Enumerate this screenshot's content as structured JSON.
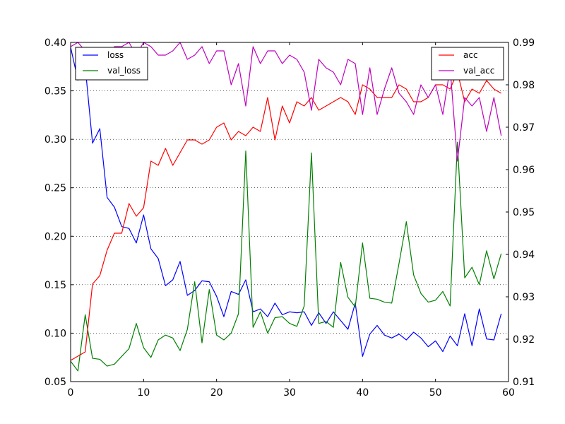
{
  "chart_data": {
    "type": "line",
    "title": "",
    "xlabel": "",
    "ylabel_left": "",
    "ylabel_right": "",
    "xlim": [
      0,
      60
    ],
    "ylim_left": [
      0.05,
      0.4
    ],
    "ylim_right": [
      0.91,
      0.99
    ],
    "x_ticks": [
      "0",
      "10",
      "20",
      "30",
      "40",
      "50",
      "60"
    ],
    "y_left_ticks": [
      "0.05",
      "0.10",
      "0.15",
      "0.20",
      "0.25",
      "0.30",
      "0.35",
      "0.40"
    ],
    "y_right_ticks": [
      "0.91",
      "0.92",
      "0.93",
      "0.94",
      "0.95",
      "0.96",
      "0.97",
      "0.98",
      "0.99"
    ],
    "grid": "dotted horizontal lines at left-axis ticks",
    "legend_left": {
      "placement": "top-left",
      "entries": [
        "loss",
        "val_loss"
      ]
    },
    "legend_right": {
      "placement": "top-right",
      "entries": [
        "acc",
        "val_acc"
      ]
    },
    "colors": {
      "loss": "#0000ff",
      "val_loss": "#008000",
      "acc": "#ff0000",
      "val_acc": "#bf00bf"
    },
    "x": [
      0,
      1,
      2,
      3,
      4,
      5,
      6,
      7,
      8,
      9,
      10,
      11,
      12,
      13,
      14,
      15,
      16,
      17,
      18,
      19,
      20,
      21,
      22,
      23,
      24,
      25,
      26,
      27,
      28,
      29,
      30,
      31,
      32,
      33,
      34,
      35,
      36,
      37,
      38,
      39,
      40,
      41,
      42,
      43,
      44,
      45,
      46,
      47,
      48,
      49,
      50,
      51,
      52,
      53,
      54,
      55,
      56,
      57,
      58,
      59
    ],
    "series": [
      {
        "name": "loss",
        "axis": "left",
        "values": [
          0.395,
          0.361,
          0.375,
          0.296,
          0.311,
          0.24,
          0.23,
          0.21,
          0.208,
          0.193,
          0.222,
          0.187,
          0.177,
          0.149,
          0.155,
          0.174,
          0.139,
          0.144,
          0.154,
          0.153,
          0.138,
          0.117,
          0.143,
          0.14,
          0.155,
          0.122,
          0.125,
          0.117,
          0.131,
          0.119,
          0.122,
          0.121,
          0.122,
          0.108,
          0.121,
          0.11,
          0.122,
          0.113,
          0.104,
          0.131,
          0.076,
          0.099,
          0.108,
          0.098,
          0.095,
          0.099,
          0.093,
          0.101,
          0.095,
          0.086,
          0.092,
          0.081,
          0.097,
          0.087,
          0.12,
          0.087,
          0.125,
          0.094,
          0.093,
          0.12
        ]
      },
      {
        "name": "val_loss",
        "axis": "left",
        "values": [
          0.071,
          0.061,
          0.119,
          0.074,
          0.073,
          0.066,
          0.068,
          0.076,
          0.084,
          0.11,
          0.085,
          0.075,
          0.093,
          0.098,
          0.095,
          0.082,
          0.104,
          0.153,
          0.09,
          0.145,
          0.098,
          0.093,
          0.1,
          0.12,
          0.288,
          0.106,
          0.122,
          0.1,
          0.116,
          0.117,
          0.11,
          0.107,
          0.128,
          0.286,
          0.11,
          0.112,
          0.106,
          0.173,
          0.137,
          0.127,
          0.193,
          0.136,
          0.135,
          0.132,
          0.131,
          0.172,
          0.215,
          0.16,
          0.141,
          0.132,
          0.134,
          0.143,
          0.128,
          0.297,
          0.157,
          0.168,
          0.15,
          0.185,
          0.156,
          0.182
        ]
      },
      {
        "name": "acc",
        "axis": "right",
        "values": [
          0.915,
          0.916,
          0.917,
          0.933,
          0.935,
          0.941,
          0.945,
          0.945,
          0.952,
          0.949,
          0.951,
          0.962,
          0.961,
          0.965,
          0.961,
          0.964,
          0.967,
          0.967,
          0.966,
          0.967,
          0.97,
          0.971,
          0.967,
          0.969,
          0.968,
          0.97,
          0.969,
          0.977,
          0.967,
          0.975,
          0.971,
          0.976,
          0.975,
          0.977,
          0.974,
          0.975,
          0.976,
          0.977,
          0.976,
          0.973,
          0.98,
          0.979,
          0.977,
          0.977,
          0.977,
          0.98,
          0.979,
          0.976,
          0.976,
          0.977,
          0.98,
          0.98,
          0.979,
          0.983,
          0.976,
          0.979,
          0.978,
          0.981,
          0.979,
          0.978
        ]
      },
      {
        "name": "val_acc",
        "axis": "right",
        "values": [
          0.989,
          0.99,
          0.988,
          0.988,
          0.988,
          0.987,
          0.989,
          0.989,
          0.99,
          0.987,
          0.99,
          0.989,
          0.987,
          0.987,
          0.988,
          0.99,
          0.986,
          0.987,
          0.989,
          0.985,
          0.988,
          0.988,
          0.98,
          0.985,
          0.975,
          0.989,
          0.985,
          0.988,
          0.988,
          0.985,
          0.987,
          0.986,
          0.983,
          0.974,
          0.986,
          0.984,
          0.983,
          0.98,
          0.986,
          0.985,
          0.973,
          0.984,
          0.973,
          0.979,
          0.984,
          0.978,
          0.976,
          0.973,
          0.98,
          0.977,
          0.98,
          0.973,
          0.984,
          0.962,
          0.977,
          0.975,
          0.977,
          0.969,
          0.977,
          0.968
        ]
      }
    ]
  }
}
